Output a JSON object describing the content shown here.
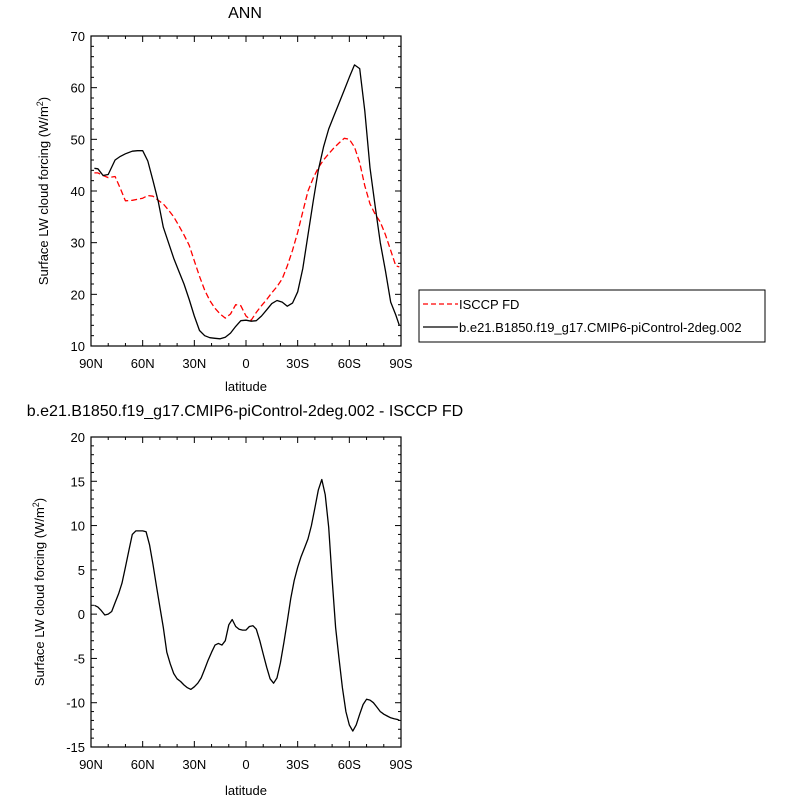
{
  "chart_data": [
    {
      "type": "line",
      "title": "ANN",
      "xlabel": "latitude",
      "ylabel": "Surface LW cloud forcing (W/m",
      "ylabel_sup": "2",
      "ylabel_close": ")",
      "xlim": [
        90,
        -90
      ],
      "ylim": [
        10,
        70
      ],
      "xticks": [
        90,
        60,
        30,
        0,
        -30,
        -60,
        -90
      ],
      "xtick_labels": [
        "90N",
        "60N",
        "30N",
        "0",
        "30S",
        "60S",
        "90S"
      ],
      "yticks": [
        10,
        20,
        30,
        40,
        50,
        60,
        70
      ],
      "ytick_labels": [
        "10",
        "20",
        "30",
        "40",
        "50",
        "60",
        "70"
      ],
      "legend_position": "right",
      "series": [
        {
          "name": "ISCCP FD",
          "color": "#ff0000",
          "style": "dashed",
          "x": [
            88,
            86,
            83,
            80,
            76,
            73,
            70,
            66,
            63,
            60,
            57,
            54,
            51,
            48,
            45,
            42,
            39,
            36,
            33,
            30,
            27,
            24,
            21,
            18,
            15,
            12,
            9,
            6,
            3,
            0,
            -3,
            -6,
            -9,
            -12,
            -15,
            -18,
            -21,
            -24,
            -27,
            -30,
            -33,
            -36,
            -39,
            -42,
            -45,
            -48,
            -51,
            -54,
            -57,
            -60,
            -63,
            -66,
            -69,
            -72,
            -75,
            -78,
            -81,
            -84,
            -87,
            -89
          ],
          "y": [
            43.5,
            43.5,
            43,
            42.6,
            42.8,
            40.5,
            38.1,
            38.2,
            38.4,
            38.6,
            39.1,
            39.0,
            38.2,
            37.5,
            36.3,
            35.0,
            33.3,
            31.5,
            29.5,
            26.5,
            23.5,
            20.8,
            18.8,
            17.3,
            16.2,
            15.4,
            16.2,
            18.0,
            17.8,
            15.8,
            15.0,
            16.5,
            17.8,
            19.0,
            20.3,
            21.5,
            23.0,
            25.5,
            28.5,
            32.0,
            36.0,
            40.0,
            42.5,
            44.5,
            46.0,
            47.2,
            48.3,
            49.3,
            50.2,
            50.0,
            48.5,
            45.5,
            41.0,
            37.5,
            35.5,
            34.0,
            31.5,
            28.5,
            25.5,
            25.3
          ]
        },
        {
          "name": "b.e21.B1850.f19_g17.CMIP6-piControl-2deg.002",
          "color": "#000000",
          "style": "solid",
          "x": [
            88,
            86,
            83,
            80,
            76,
            73,
            70,
            66,
            63,
            60,
            57,
            54,
            51,
            48,
            45,
            42,
            39,
            36,
            33,
            30,
            27,
            24,
            21,
            18,
            15,
            12,
            9,
            6,
            3,
            0,
            -3,
            -6,
            -9,
            -12,
            -15,
            -18,
            -21,
            -24,
            -27,
            -30,
            -33,
            -36,
            -39,
            -42,
            -45,
            -48,
            -51,
            -54,
            -57,
            -60,
            -63,
            -66,
            -69,
            -72,
            -75,
            -78,
            -81,
            -84,
            -87,
            -89
          ],
          "y": [
            44.4,
            44.3,
            43,
            43.2,
            46.0,
            46.7,
            47.2,
            47.7,
            47.8,
            47.8,
            45.8,
            42.0,
            38.0,
            33.0,
            30.0,
            27.0,
            24.5,
            22.0,
            19.0,
            15.8,
            13.0,
            12.0,
            11.6,
            11.5,
            11.4,
            11.7,
            12.5,
            13.8,
            14.9,
            15.0,
            14.8,
            14.9,
            15.8,
            17.0,
            18.2,
            18.8,
            18.5,
            17.7,
            18.3,
            20.5,
            25.0,
            31.5,
            38.0,
            44.0,
            48.5,
            52.0,
            54.5,
            57.0,
            59.5,
            62.0,
            64.4,
            63.7,
            55.5,
            44.5,
            37.0,
            30.0,
            24.5,
            18.5,
            16.0,
            14.0
          ]
        }
      ]
    },
    {
      "type": "line",
      "title": "b.e21.B1850.f19_g17.CMIP6-piControl-2deg.002 - ISCCP FD",
      "xlabel": "latitude",
      "ylabel": "Surface LW cloud forcing (W/m",
      "ylabel_sup": "2",
      "ylabel_close": ")",
      "xlim": [
        90,
        -90
      ],
      "ylim": [
        -15,
        20
      ],
      "xticks": [
        90,
        60,
        30,
        0,
        -30,
        -60,
        -90
      ],
      "xtick_labels": [
        "90N",
        "60N",
        "30N",
        "0",
        "30S",
        "60S",
        "90S"
      ],
      "yticks": [
        -15,
        -10,
        -5,
        0,
        5,
        10,
        15,
        20
      ],
      "ytick_labels": [
        "-15",
        "-10",
        "-5",
        "0",
        "5",
        "10",
        "15",
        "20"
      ],
      "series": [
        {
          "color": "#000000",
          "style": "solid",
          "x": [
            88,
            86,
            84,
            82,
            80,
            78,
            76,
            74,
            72,
            70,
            68,
            66,
            64,
            62,
            60,
            58,
            56,
            54,
            52,
            50,
            48,
            46,
            44,
            42,
            40,
            38,
            36,
            34,
            32,
            30,
            28,
            26,
            24,
            22,
            20,
            18,
            16,
            14,
            12,
            10,
            8,
            6,
            4,
            2,
            0,
            -2,
            -4,
            -6,
            -8,
            -10,
            -12,
            -14,
            -16,
            -18,
            -20,
            -22,
            -24,
            -26,
            -28,
            -30,
            -32,
            -34,
            -36,
            -38,
            -40,
            -42,
            -44,
            -46,
            -48,
            -50,
            -52,
            -54,
            -56,
            -58,
            -60,
            -62,
            -64,
            -66,
            -68,
            -70,
            -72,
            -74,
            -76,
            -78,
            -80,
            -82,
            -84,
            -86,
            -88,
            -89
          ],
          "y": [
            1.0,
            0.8,
            0.4,
            -0.1,
            0.0,
            0.3,
            1.3,
            2.3,
            3.5,
            5.3,
            7.2,
            9.0,
            9.4,
            9.4,
            9.4,
            9.3,
            7.8,
            5.6,
            3.2,
            0.8,
            -1.5,
            -4.3,
            -5.6,
            -6.7,
            -7.3,
            -7.6,
            -8.0,
            -8.3,
            -8.5,
            -8.2,
            -7.8,
            -7.2,
            -6.2,
            -5.2,
            -4.3,
            -3.5,
            -3.3,
            -3.5,
            -3.0,
            -1.2,
            -0.6,
            -1.4,
            -1.7,
            -1.8,
            -1.8,
            -1.4,
            -1.3,
            -1.7,
            -3.0,
            -4.5,
            -6.0,
            -7.3,
            -7.8,
            -7.2,
            -5.5,
            -3.2,
            -0.8,
            1.8,
            3.8,
            5.3,
            6.5,
            7.5,
            8.5,
            10.0,
            12.0,
            14.0,
            15.2,
            13.5,
            9.8,
            4.0,
            -1.5,
            -5.0,
            -8.3,
            -11.0,
            -12.5,
            -13.2,
            -12.5,
            -11.3,
            -10.2,
            -9.6,
            -9.7,
            -10.0,
            -10.5,
            -11.0,
            -11.3,
            -11.5,
            -11.7,
            -11.8,
            -11.9,
            -12.0
          ]
        }
      ]
    }
  ]
}
